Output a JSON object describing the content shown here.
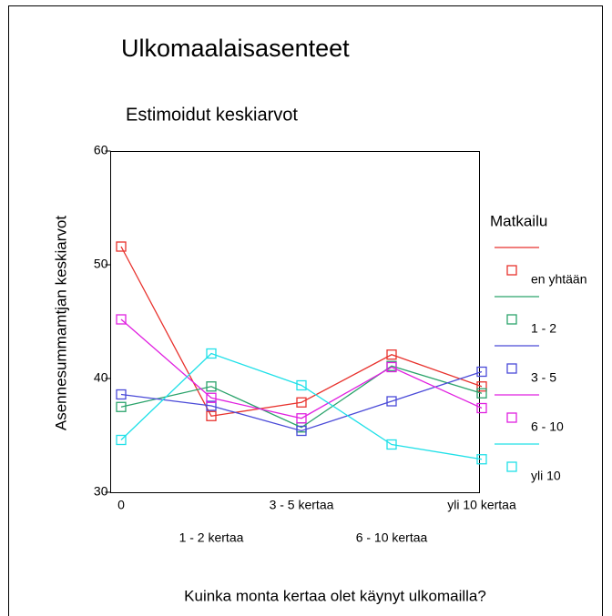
{
  "chart_data": {
    "type": "line",
    "title": "Ulkomaalaisasenteet",
    "subtitle": "Estimoidut keskiarvot",
    "y_label": "Asennesummamtjan keskiarvot",
    "x_label": "Kuinka monta kertaa olet käynyt ulkomailla?",
    "legend_title": "Matkailu",
    "categories": [
      "0",
      "1 - 2 kertaa",
      "3 - 5 kertaa",
      "6 - 10 kertaa",
      "yli 10 kertaa"
    ],
    "ylim": [
      30,
      60
    ],
    "yticks": [
      30,
      40,
      50,
      60
    ],
    "grid": false,
    "series": [
      {
        "name": "en yhtään",
        "color": "#e8322d",
        "values": [
          51.6,
          36.7,
          37.9,
          42.1,
          39.3
        ]
      },
      {
        "name": "1 - 2",
        "color": "#2ba36b",
        "values": [
          37.5,
          39.3,
          35.7,
          41.1,
          38.7
        ]
      },
      {
        "name": "3 - 5",
        "color": "#4a4ad8",
        "values": [
          38.6,
          37.6,
          35.4,
          38.0,
          40.6
        ]
      },
      {
        "name": "6 - 10",
        "color": "#e020e0",
        "values": [
          45.2,
          38.3,
          36.5,
          41.0,
          37.4
        ]
      },
      {
        "name": "yli 10",
        "color": "#20e0e8",
        "values": [
          34.6,
          42.2,
          39.4,
          34.2,
          32.9
        ]
      }
    ]
  }
}
